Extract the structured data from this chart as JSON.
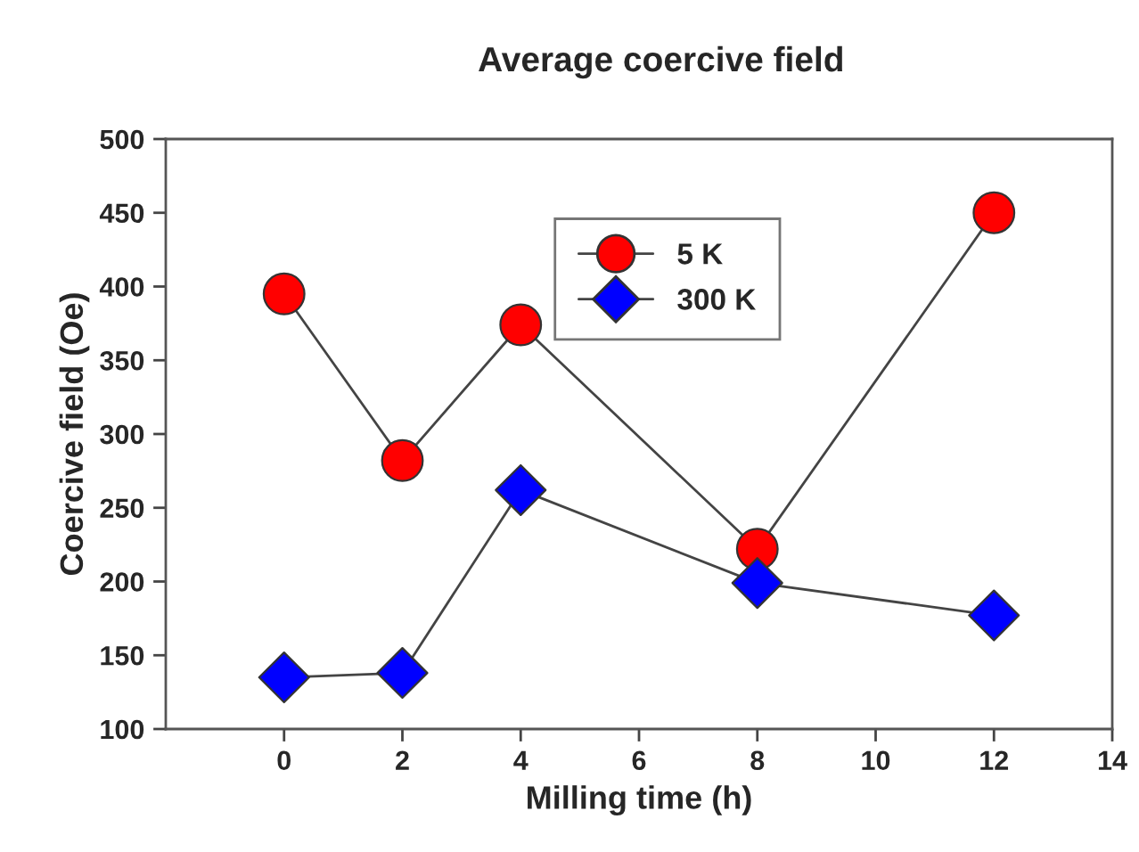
{
  "chart_data": {
    "type": "line",
    "title": "Average coercive field",
    "xlabel": "Milling time (h)",
    "ylabel": "Coercive field (Oe)",
    "x": [
      0,
      2,
      4,
      8,
      12
    ],
    "series": [
      {
        "name": "5 K",
        "color": "#ff0000",
        "marker": "circle",
        "values": [
          395,
          282,
          374,
          222,
          450
        ]
      },
      {
        "name": "300 K",
        "color": "#0000ff",
        "marker": "diamond",
        "values": [
          135,
          138,
          262,
          199,
          177
        ]
      }
    ],
    "xlim": [
      -2,
      14
    ],
    "xticks": [
      0,
      2,
      4,
      6,
      8,
      10,
      12,
      14
    ],
    "ylim": [
      100,
      500
    ],
    "yticks": [
      100,
      150,
      200,
      250,
      300,
      350,
      400,
      450,
      500
    ],
    "grid": false,
    "legend": "top",
    "line_style": "solid"
  }
}
